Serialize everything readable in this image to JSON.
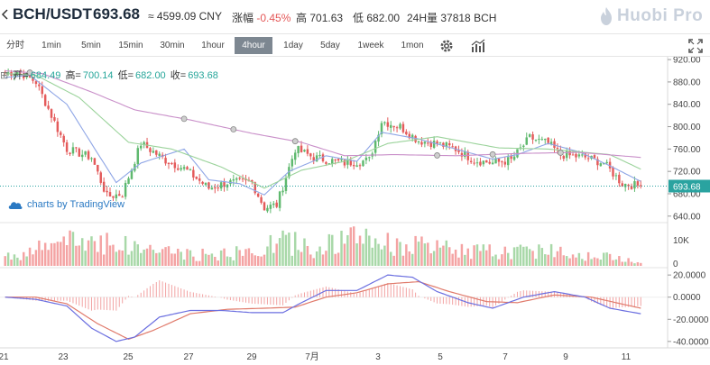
{
  "header": {
    "pair": "BCH/USDT",
    "price": "693.68",
    "cny": "≈ 4599.09 CNY",
    "change_label": "涨幅",
    "change_value": "-0.45%",
    "high_label": "高",
    "high_value": "701.63",
    "low_label": "低",
    "low_value": "682.00",
    "volume_label": "24H量",
    "volume_value": "37818 BCH",
    "logo_text": "Huobi Pro"
  },
  "toolbar": {
    "intervals": [
      "分时",
      "1min",
      "5min",
      "15min",
      "30min",
      "1hour",
      "4hour",
      "1day",
      "5day",
      "1week",
      "1mon"
    ],
    "active": "4hour",
    "indicator_icon": "gear-icon",
    "chart_icon": "bar-chart-icon",
    "fullscreen_icon": "expand-icon"
  },
  "ohlc": {
    "open_label": "开=",
    "open": "684.49",
    "high_label": "高=",
    "high": "700.14",
    "low_label": "低=",
    "low": "682.00",
    "close_label": "收=",
    "close": "693.68"
  },
  "badge": {
    "text": "charts by TradingView"
  },
  "colors": {
    "up": "#5fb96e",
    "down": "#e45b5b",
    "up_vol": "#a8d8a8",
    "down_vol": "#f4a3a3",
    "ma_short": "#8fa6e6",
    "ma_mid": "#9bd39b",
    "ma_long": "#c98fc9",
    "price_line": "#2aa3a0",
    "macd_dif": "#6b6fe0",
    "macd_dea": "#e07a6b"
  },
  "chart_data": {
    "type": "candlestick",
    "price_axis": {
      "ticks": [
        "920.00",
        "880.00",
        "840.00",
        "800.00",
        "760.00",
        "720.00",
        "680.00",
        "640.00"
      ],
      "range": [
        630,
        925
      ],
      "last_price_label": "693.68"
    },
    "volume_axis": {
      "ticks": [
        "10K",
        "0"
      ]
    },
    "macd_axis": {
      "ticks": [
        "20.0000",
        "0.0000",
        "-20.0000",
        "-40.0000"
      ],
      "range": [
        -45,
        25
      ]
    },
    "x_axis": {
      "ticks": [
        "21",
        "23",
        "25",
        "27",
        "29",
        "7月",
        "3",
        "5",
        "7",
        "9",
        "11"
      ]
    },
    "anchors": {
      "t": [
        0,
        4,
        10,
        20,
        28,
        33,
        38,
        44,
        52,
        58,
        66,
        72,
        80,
        84,
        88,
        94,
        100,
        110,
        118,
        122,
        128,
        134,
        140,
        146,
        152,
        158,
        164,
        170,
        176,
        180,
        188,
        194,
        200,
        206
      ],
      "price": [
        895,
        900,
        880,
        760,
        745,
        675,
        680,
        770,
        740,
        725,
        690,
        700,
        700,
        655,
        660,
        760,
        745,
        735,
        740,
        810,
        800,
        775,
        770,
        760,
        740,
        735,
        740,
        780,
        770,
        750,
        745,
        735,
        698,
        693.68
      ]
    },
    "volume_anchors": {
      "t": [
        0,
        20,
        34,
        40,
        50,
        60,
        80,
        90,
        100,
        118,
        122,
        140,
        160,
        176,
        188,
        206
      ],
      "volume": [
        4000,
        11500,
        12500,
        9000,
        8000,
        5000,
        6500,
        12000,
        8500,
        14500,
        11000,
        8500,
        6500,
        8000,
        5500,
        2500
      ]
    },
    "ma_short_anchors": {
      "t": [
        0,
        8,
        20,
        30,
        36,
        44,
        58,
        66,
        76,
        84,
        92,
        104,
        114,
        122,
        134,
        146,
        158,
        166,
        176,
        186,
        196,
        206
      ],
      "price": [
        888,
        892,
        840,
        752,
        700,
        735,
        760,
        705,
        698,
        678,
        720,
        748,
        738,
        790,
        778,
        760,
        742,
        750,
        770,
        755,
        730,
        702
      ]
    },
    "ma_mid_anchors": {
      "t": [
        0,
        10,
        24,
        40,
        54,
        70,
        84,
        96,
        110,
        124,
        140,
        160,
        176,
        196,
        206
      ],
      "price": [
        895,
        892,
        852,
        772,
        760,
        728,
        690,
        722,
        738,
        770,
        782,
        762,
        760,
        750,
        724
      ]
    },
    "ma_long_anchors": {
      "t": [
        0,
        12,
        28,
        42,
        60,
        80,
        96,
        110,
        126,
        146,
        166,
        186,
        206
      ],
      "price": [
        900,
        895,
        862,
        830,
        812,
        788,
        772,
        748,
        750,
        748,
        752,
        754,
        745
      ]
    },
    "ma_long_markers_t": [
      8,
      58,
      74,
      94,
      140,
      158,
      180
    ],
    "dif_anchors": {
      "t": [
        0,
        10,
        20,
        28,
        36,
        42,
        50,
        60,
        70,
        80,
        90,
        96,
        104,
        114,
        124,
        132,
        140,
        150,
        158,
        168,
        178,
        188,
        196,
        206
      ],
      "macd": [
        0,
        -2,
        -8,
        -28,
        -40,
        -36,
        -18,
        -12,
        -12,
        -14,
        -14,
        -5,
        6,
        6,
        20,
        18,
        5,
        -5,
        -10,
        0,
        5,
        0,
        -10,
        -15
      ]
    },
    "dea_anchors": {
      "t": [
        0,
        10,
        20,
        30,
        40,
        48,
        60,
        72,
        84,
        94,
        104,
        114,
        124,
        134,
        144,
        156,
        166,
        178,
        190,
        206
      ],
      "macd": [
        0,
        0,
        -6,
        -24,
        -38,
        -30,
        -15,
        -11,
        -10,
        -9,
        0,
        4,
        12,
        14,
        5,
        -4,
        -5,
        2,
        0,
        -10
      ]
    }
  }
}
